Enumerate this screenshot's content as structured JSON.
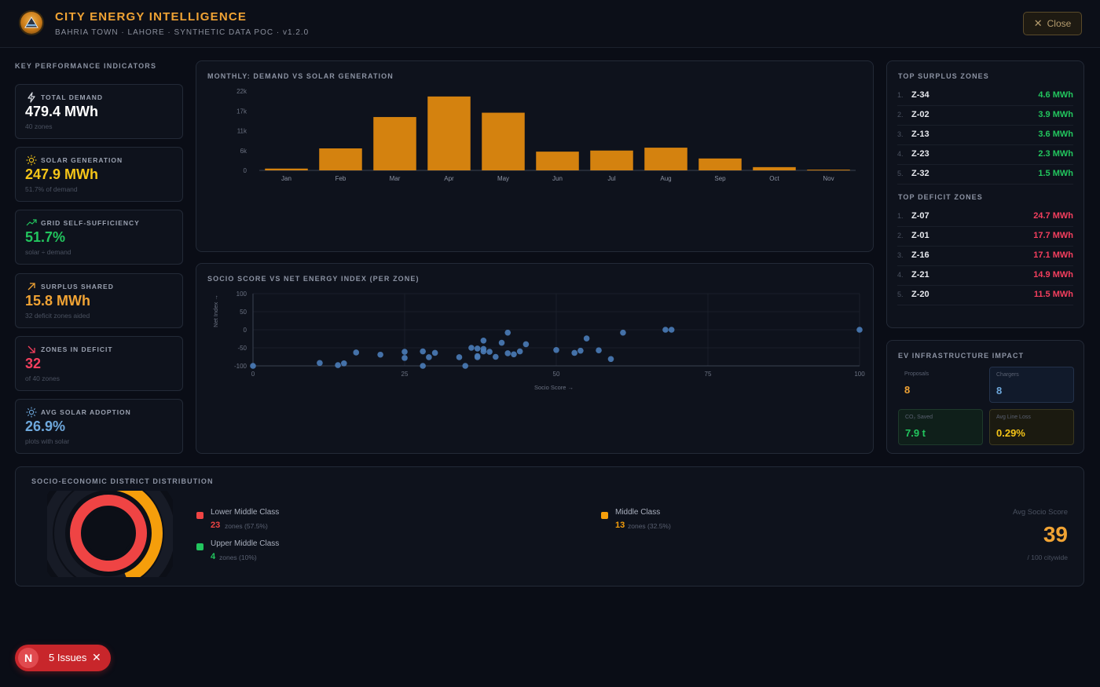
{
  "header": {
    "title": "CITY ENERGY INTELLIGENCE",
    "subtitle": "BAHRIA TOWN · LAHORE · SYNTHETIC DATA POC · v1.2.0",
    "close_label": "Close"
  },
  "kpi_section": {
    "title": "KEY PERFORMANCE INDICATORS",
    "items": [
      {
        "label": "TOTAL DEMAND",
        "value": "479.4 MWh",
        "note": "40 zones",
        "icon": "bolt-icon",
        "color": "#ffffff"
      },
      {
        "label": "SOLAR GENERATION",
        "value": "247.9 MWh",
        "note": "51.7% of demand",
        "icon": "sun-icon",
        "color": "#f5c518"
      },
      {
        "label": "GRID SELF-SUFFICIENCY",
        "value": "51.7%",
        "note": "solar ÷ demand",
        "icon": "trend-up-icon",
        "color": "#22c55e"
      },
      {
        "label": "SURPLUS SHARED",
        "value": "15.8 MWh",
        "note": "32 deficit zones aided",
        "icon": "arrow-up-right-icon",
        "color": "#f0a334"
      },
      {
        "label": "ZONES IN DEFICIT",
        "value": "32",
        "note": "of 40 zones",
        "icon": "arrow-down-right-icon",
        "color": "#f43f5e"
      },
      {
        "label": "AVG SOLAR ADOPTION",
        "value": "26.9%",
        "note": "plots with solar",
        "icon": "sun-icon",
        "color": "#6ea8dc"
      }
    ]
  },
  "monthly_chart": {
    "title": "MONTHLY: DEMAND VS SOLAR GENERATION"
  },
  "scatter_chart": {
    "title": "SOCIO SCORE VS NET ENERGY INDEX (PER ZONE)",
    "xlabel": "Socio Score →",
    "ylabel": "Net Index →"
  },
  "chart_data": [
    {
      "type": "bar",
      "title": "MONTHLY: DEMAND VS SOLAR GENERATION",
      "categories": [
        "Jan",
        "Feb",
        "Mar",
        "Apr",
        "May",
        "Jun",
        "Jul",
        "Aug",
        "Sep",
        "Oct",
        "Nov"
      ],
      "values": [
        500,
        6100,
        14800,
        20500,
        16000,
        5200,
        5500,
        6300,
        3300,
        900,
        200
      ],
      "yticks": [
        "22k",
        "17k",
        "11k",
        "6k",
        "0"
      ],
      "ylim": [
        0,
        22000
      ],
      "color": "#d4820f"
    },
    {
      "type": "scatter",
      "title": "SOCIO SCORE VS NET ENERGY INDEX (PER ZONE)",
      "xlabel": "Socio Score →",
      "ylabel": "Net Index →",
      "xlim": [
        0,
        100
      ],
      "ylim": [
        -100,
        100
      ],
      "xticks": [
        "0",
        "25",
        "50",
        "75",
        "100"
      ],
      "yticks": [
        "100",
        "50",
        "0",
        "-50",
        "-100"
      ],
      "color": "#4a7cb8",
      "points": [
        [
          0,
          -100
        ],
        [
          11,
          -92
        ],
        [
          14,
          -98
        ],
        [
          15,
          -93
        ],
        [
          17,
          -63
        ],
        [
          21,
          -69
        ],
        [
          25,
          -61
        ],
        [
          25,
          -78
        ],
        [
          28,
          -100
        ],
        [
          28,
          -60
        ],
        [
          29,
          -76
        ],
        [
          30,
          -64
        ],
        [
          34,
          -76
        ],
        [
          35,
          -100
        ],
        [
          36,
          -50
        ],
        [
          37,
          -52
        ],
        [
          37,
          -73
        ],
        [
          37,
          -76
        ],
        [
          38,
          -53
        ],
        [
          38,
          -60
        ],
        [
          38,
          -30
        ],
        [
          39,
          -61
        ],
        [
          40,
          -75
        ],
        [
          41,
          -36
        ],
        [
          42,
          -8
        ],
        [
          42,
          -65
        ],
        [
          43,
          -68
        ],
        [
          44,
          -60
        ],
        [
          45,
          -40
        ],
        [
          50,
          -56
        ],
        [
          53,
          -64
        ],
        [
          54,
          -58
        ],
        [
          55,
          -24
        ],
        [
          57,
          -57
        ],
        [
          59,
          -81
        ],
        [
          61,
          -8
        ],
        [
          68,
          0
        ],
        [
          69,
          0
        ],
        [
          100,
          0
        ]
      ]
    },
    {
      "type": "pie",
      "title": "SOCIO-ECONOMIC DISTRIBUTION",
      "categories": [
        "Lower Middle Class",
        "Middle Class",
        "Upper Middle Class"
      ],
      "values": [
        23,
        13,
        4
      ],
      "colors": [
        "#ef4444",
        "#f59e0b",
        "#22c55e"
      ]
    }
  ],
  "surplus": {
    "title": "TOP SURPLUS ZONES",
    "rows": [
      {
        "rank": "1.",
        "zone": "Z-34",
        "value": "4.6 MWh"
      },
      {
        "rank": "2.",
        "zone": "Z-02",
        "value": "3.9 MWh"
      },
      {
        "rank": "3.",
        "zone": "Z-13",
        "value": "3.6 MWh"
      },
      {
        "rank": "4.",
        "zone": "Z-23",
        "value": "2.3 MWh"
      },
      {
        "rank": "5.",
        "zone": "Z-32",
        "value": "1.5 MWh"
      }
    ],
    "color": "#22c55e"
  },
  "deficit": {
    "title": "TOP DEFICIT ZONES",
    "rows": [
      {
        "rank": "1.",
        "zone": "Z-07",
        "value": "24.7 MWh"
      },
      {
        "rank": "2.",
        "zone": "Z-01",
        "value": "17.7 MWh"
      },
      {
        "rank": "3.",
        "zone": "Z-16",
        "value": "17.1 MWh"
      },
      {
        "rank": "4.",
        "zone": "Z-21",
        "value": "14.9 MWh"
      },
      {
        "rank": "5.",
        "zone": "Z-20",
        "value": "11.5 MWh"
      }
    ],
    "color": "#f43f5e"
  },
  "ev": {
    "title": "EV INFRASTRUCTURE IMPACT",
    "proposals_label": "Proposals",
    "proposals_value": "8",
    "chargers_label": "Chargers",
    "chargers_value": "8",
    "co2_label": "CO₂ Saved",
    "co2_value": "7.9 t",
    "lineloss_label": "Avg Line Loss",
    "lineloss_value": "0.29%"
  },
  "district": {
    "title": "SOCIO-ECONOMIC DISTRICT DISTRIBUTION",
    "legend": [
      {
        "name": "Lower Middle Class",
        "count": "23",
        "suffix": "zones (57.5%)",
        "color": "#ef4444"
      },
      {
        "name": "Middle Class",
        "count": "13",
        "suffix": "zones (32.5%)",
        "color": "#f59e0b"
      },
      {
        "name": "Upper Middle Class",
        "count": "4",
        "suffix": "zones (10%)",
        "color": "#22c55e"
      }
    ],
    "avg_label": "Avg Socio Score",
    "avg_value": "39",
    "avg_note": "/ 100 citywide"
  },
  "issues": {
    "badge": "N",
    "label": "5 Issues"
  }
}
